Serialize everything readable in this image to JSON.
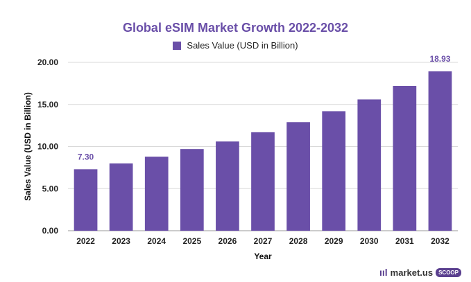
{
  "chart_data": {
    "type": "bar",
    "title": "Global eSIM Market Growth 2022-2032",
    "xlabel": "Year",
    "ylabel": "Sales Value (USD in Billion)",
    "legend": {
      "position": "top",
      "entries": [
        "Sales Value (USD in Billion)"
      ]
    },
    "categories": [
      "2022",
      "2023",
      "2024",
      "2025",
      "2026",
      "2027",
      "2028",
      "2029",
      "2030",
      "2031",
      "2032"
    ],
    "series": [
      {
        "name": "Sales Value (USD in Billion)",
        "values": [
          7.3,
          8.0,
          8.8,
          9.7,
          10.6,
          11.7,
          12.9,
          14.2,
          15.6,
          17.2,
          18.93
        ]
      }
    ],
    "data_labels": {
      "2022": "7.30",
      "2032": "18.93"
    },
    "ylim": [
      0,
      20
    ],
    "yticks": [
      "0.00",
      "5.00",
      "10.00",
      "15.00",
      "20.00"
    ],
    "grid": true,
    "colors": {
      "bar": "#6a4fa8",
      "title": "#6a4fa8",
      "data_label": "#6a4fa8",
      "grid": "#d9d9d9"
    }
  },
  "brand": {
    "logo": "ııl",
    "name": "market.us",
    "badge": "SCOOP"
  }
}
